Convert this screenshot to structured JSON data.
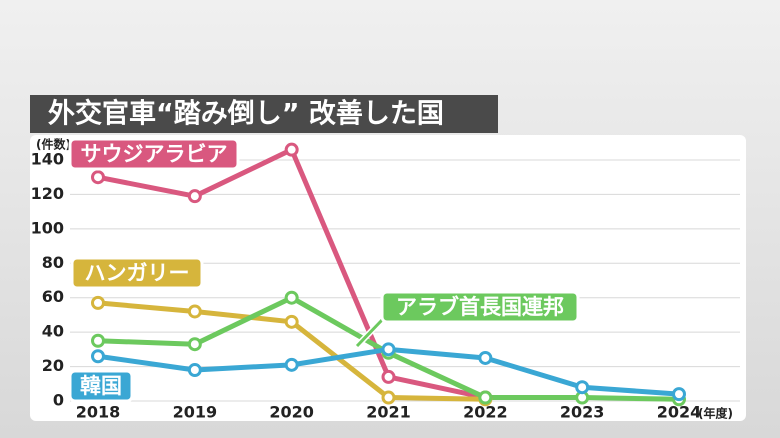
{
  "chart_data": {
    "type": "line",
    "title": "外交官車“踏み倒し” 改善した国",
    "y_unit": "(件数)",
    "x_unit": "(年度)",
    "categories": [
      "2018",
      "2019",
      "2020",
      "2021",
      "2022",
      "2023",
      "2024"
    ],
    "series": [
      {
        "name": "サウジアラビア",
        "color": "#d9587f",
        "values": [
          130,
          119,
          146,
          14,
          2,
          null,
          null
        ]
      },
      {
        "name": "ハンガリー",
        "color": "#d6b53c",
        "values": [
          57,
          52,
          46,
          2,
          1,
          null,
          null
        ]
      },
      {
        "name": "アラブ首長国連邦",
        "color": "#6cc95e",
        "values": [
          35,
          33,
          60,
          28,
          2,
          2,
          1
        ]
      },
      {
        "name": "韓国",
        "color": "#3aa7d4",
        "values": [
          26,
          18,
          21,
          30,
          25,
          8,
          4
        ]
      }
    ],
    "ylim": [
      0,
      140
    ],
    "yticks": [
      0,
      20,
      40,
      60,
      80,
      100,
      120,
      140
    ],
    "grid": true
  }
}
